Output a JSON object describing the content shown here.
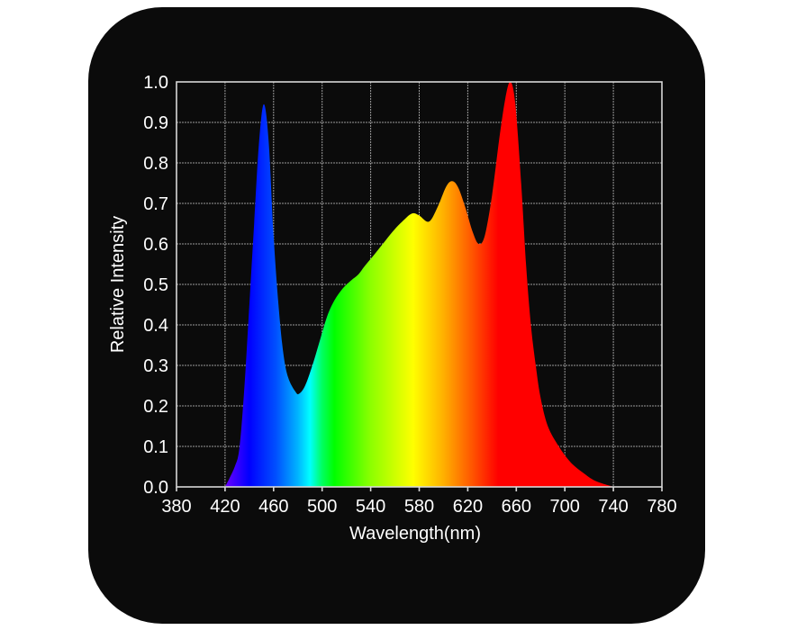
{
  "chart_data": {
    "type": "area",
    "title": "",
    "xlabel": "Wavelength(nm)",
    "ylabel": "Relative Intensity",
    "xlim": [
      380,
      780
    ],
    "ylim": [
      0.0,
      1.0
    ],
    "grid": true,
    "legend": null,
    "x_ticks": [
      "380",
      "420",
      "460",
      "500",
      "540",
      "580",
      "620",
      "660",
      "700",
      "740",
      "780"
    ],
    "y_ticks": [
      "0.0",
      "0.1",
      "0.2",
      "0.3",
      "0.4",
      "0.5",
      "0.6",
      "0.7",
      "0.8",
      "0.9",
      "1.0"
    ],
    "fill": "visible-spectrum gradient by wavelength",
    "series": [
      {
        "name": "Relative Intensity",
        "x": [
          420,
          428,
          432,
          436,
          440,
          444,
          448,
          452,
          456,
          460,
          464,
          468,
          472,
          478,
          481,
          486,
          492,
          498,
          504,
          510,
          517,
          524,
          530,
          535,
          542,
          550,
          558,
          566,
          574,
          580,
          588,
          595,
          602,
          607,
          612,
          618,
          624,
          629,
          634,
          640,
          646,
          651,
          655,
          659,
          664,
          668,
          672,
          676,
          680,
          686,
          695,
          705,
          715,
          725,
          740
        ],
        "values": [
          0.0,
          0.05,
          0.1,
          0.25,
          0.45,
          0.65,
          0.85,
          0.945,
          0.85,
          0.62,
          0.45,
          0.33,
          0.27,
          0.235,
          0.23,
          0.25,
          0.3,
          0.36,
          0.42,
          0.46,
          0.49,
          0.51,
          0.525,
          0.545,
          0.57,
          0.6,
          0.63,
          0.655,
          0.675,
          0.67,
          0.655,
          0.69,
          0.74,
          0.755,
          0.74,
          0.69,
          0.63,
          0.6,
          0.62,
          0.72,
          0.86,
          0.96,
          1.0,
          0.95,
          0.75,
          0.55,
          0.4,
          0.3,
          0.22,
          0.15,
          0.1,
          0.06,
          0.035,
          0.015,
          0.0
        ]
      }
    ],
    "peaks": [
      {
        "wavelength": 452,
        "value": 0.945
      },
      {
        "wavelength": 574,
        "value": 0.675
      },
      {
        "wavelength": 607,
        "value": 0.755
      },
      {
        "wavelength": 655,
        "value": 1.0
      }
    ]
  },
  "colors": {
    "panel_background": "#0b0b0b",
    "page_background": "#ffffff",
    "axis": "#d8d8d8",
    "grid": "#9a9a9a",
    "text": "#ffffff",
    "spectrum_stops": [
      {
        "nm": 420,
        "color": "#6a00ff"
      },
      {
        "nm": 440,
        "color": "#0000ff"
      },
      {
        "nm": 462,
        "color": "#0050ff"
      },
      {
        "nm": 480,
        "color": "#00b4ff"
      },
      {
        "nm": 490,
        "color": "#00ffff"
      },
      {
        "nm": 500,
        "color": "#00ff60"
      },
      {
        "nm": 510,
        "color": "#00ff00"
      },
      {
        "nm": 540,
        "color": "#8cff00"
      },
      {
        "nm": 575,
        "color": "#ffff00"
      },
      {
        "nm": 600,
        "color": "#ffb000"
      },
      {
        "nm": 625,
        "color": "#ff5000"
      },
      {
        "nm": 645,
        "color": "#ff0000"
      },
      {
        "nm": 740,
        "color": "#ff0000"
      }
    ]
  }
}
